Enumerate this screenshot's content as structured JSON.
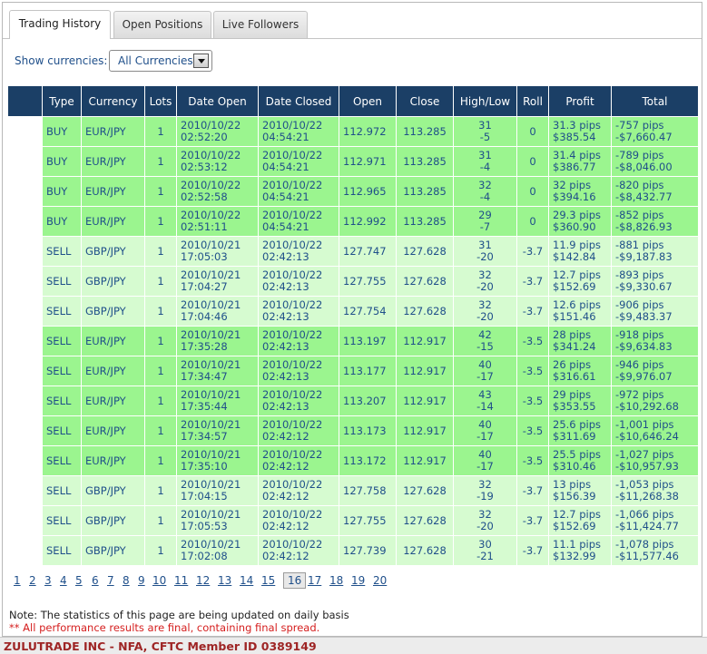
{
  "tabs": [
    {
      "label": "Trading History",
      "active": true
    },
    {
      "label": "Open Positions",
      "active": false
    },
    {
      "label": "Live Followers",
      "active": false
    }
  ],
  "filter": {
    "label": "Show currencies:",
    "selected": "All Currencies"
  },
  "columns": [
    "Type",
    "Currency",
    "Lots",
    "Date Open",
    "Date Closed",
    "Open",
    "Close",
    "High/Low",
    "Roll",
    "Profit",
    "Total"
  ],
  "rows": [
    {
      "type": "BUY",
      "currency": "EUR/JPY",
      "lots": "1",
      "date_open": [
        "2010/10/22",
        "02:52:20"
      ],
      "date_closed": [
        "2010/10/22",
        "04:54:21"
      ],
      "open": "112.972",
      "close": "113.285",
      "high_low": [
        "31",
        "-5"
      ],
      "roll": "0",
      "profit": [
        "31.3 pips",
        "$385.54"
      ],
      "total": [
        "-757 pips",
        "-$7,660.47"
      ],
      "shade": "buy"
    },
    {
      "type": "BUY",
      "currency": "EUR/JPY",
      "lots": "1",
      "date_open": [
        "2010/10/22",
        "02:53:12"
      ],
      "date_closed": [
        "2010/10/22",
        "04:54:21"
      ],
      "open": "112.971",
      "close": "113.285",
      "high_low": [
        "31",
        "-4"
      ],
      "roll": "0",
      "profit": [
        "31.4 pips",
        "$386.77"
      ],
      "total": [
        "-789 pips",
        "-$8,046.00"
      ],
      "shade": "buy"
    },
    {
      "type": "BUY",
      "currency": "EUR/JPY",
      "lots": "1",
      "date_open": [
        "2010/10/22",
        "02:52:58"
      ],
      "date_closed": [
        "2010/10/22",
        "04:54:21"
      ],
      "open": "112.965",
      "close": "113.285",
      "high_low": [
        "32",
        "-4"
      ],
      "roll": "0",
      "profit": [
        "32 pips",
        "$394.16"
      ],
      "total": [
        "-820 pips",
        "-$8,432.77"
      ],
      "shade": "buy"
    },
    {
      "type": "BUY",
      "currency": "EUR/JPY",
      "lots": "1",
      "date_open": [
        "2010/10/22",
        "02:51:11"
      ],
      "date_closed": [
        "2010/10/22",
        "04:54:21"
      ],
      "open": "112.992",
      "close": "113.285",
      "high_low": [
        "29",
        "-7"
      ],
      "roll": "0",
      "profit": [
        "29.3 pips",
        "$360.90"
      ],
      "total": [
        "-852 pips",
        "-$8,826.93"
      ],
      "shade": "buy"
    },
    {
      "type": "SELL",
      "currency": "GBP/JPY",
      "lots": "1",
      "date_open": [
        "2010/10/21",
        "17:05:03"
      ],
      "date_closed": [
        "2010/10/22",
        "02:42:13"
      ],
      "open": "127.747",
      "close": "127.628",
      "high_low": [
        "31",
        "-20"
      ],
      "roll": "-3.7",
      "profit": [
        "11.9 pips",
        "$142.84"
      ],
      "total": [
        "-881 pips",
        "-$9,187.83"
      ],
      "shade": "sell1"
    },
    {
      "type": "SELL",
      "currency": "GBP/JPY",
      "lots": "1",
      "date_open": [
        "2010/10/21",
        "17:04:27"
      ],
      "date_closed": [
        "2010/10/22",
        "02:42:13"
      ],
      "open": "127.755",
      "close": "127.628",
      "high_low": [
        "32",
        "-20"
      ],
      "roll": "-3.7",
      "profit": [
        "12.7 pips",
        "$152.69"
      ],
      "total": [
        "-893 pips",
        "-$9,330.67"
      ],
      "shade": "sell1"
    },
    {
      "type": "SELL",
      "currency": "GBP/JPY",
      "lots": "1",
      "date_open": [
        "2010/10/21",
        "17:04:46"
      ],
      "date_closed": [
        "2010/10/22",
        "02:42:13"
      ],
      "open": "127.754",
      "close": "127.628",
      "high_low": [
        "32",
        "-20"
      ],
      "roll": "-3.7",
      "profit": [
        "12.6 pips",
        "$151.46"
      ],
      "total": [
        "-906 pips",
        "-$9,483.37"
      ],
      "shade": "sell1"
    },
    {
      "type": "SELL",
      "currency": "EUR/JPY",
      "lots": "1",
      "date_open": [
        "2010/10/21",
        "17:35:28"
      ],
      "date_closed": [
        "2010/10/22",
        "02:42:13"
      ],
      "open": "113.197",
      "close": "112.917",
      "high_low": [
        "42",
        "-15"
      ],
      "roll": "-3.5",
      "profit": [
        "28 pips",
        "$341.24"
      ],
      "total": [
        "-918 pips",
        "-$9,634.83"
      ],
      "shade": "sell2"
    },
    {
      "type": "SELL",
      "currency": "EUR/JPY",
      "lots": "1",
      "date_open": [
        "2010/10/21",
        "17:34:47"
      ],
      "date_closed": [
        "2010/10/22",
        "02:42:13"
      ],
      "open": "113.177",
      "close": "112.917",
      "high_low": [
        "40",
        "-17"
      ],
      "roll": "-3.5",
      "profit": [
        "26 pips",
        "$316.61"
      ],
      "total": [
        "-946 pips",
        "-$9,976.07"
      ],
      "shade": "sell2"
    },
    {
      "type": "SELL",
      "currency": "EUR/JPY",
      "lots": "1",
      "date_open": [
        "2010/10/21",
        "17:35:44"
      ],
      "date_closed": [
        "2010/10/22",
        "02:42:13"
      ],
      "open": "113.207",
      "close": "112.917",
      "high_low": [
        "43",
        "-14"
      ],
      "roll": "-3.5",
      "profit": [
        "29 pips",
        "$353.55"
      ],
      "total": [
        "-972 pips",
        "-$10,292.68"
      ],
      "shade": "sell2"
    },
    {
      "type": "SELL",
      "currency": "EUR/JPY",
      "lots": "1",
      "date_open": [
        "2010/10/21",
        "17:34:57"
      ],
      "date_closed": [
        "2010/10/22",
        "02:42:12"
      ],
      "open": "113.173",
      "close": "112.917",
      "high_low": [
        "40",
        "-17"
      ],
      "roll": "-3.5",
      "profit": [
        "25.6 pips",
        "$311.69"
      ],
      "total": [
        "-1,001 pips",
        "-$10,646.24"
      ],
      "shade": "sell2"
    },
    {
      "type": "SELL",
      "currency": "EUR/JPY",
      "lots": "1",
      "date_open": [
        "2010/10/21",
        "17:35:10"
      ],
      "date_closed": [
        "2010/10/22",
        "02:42:12"
      ],
      "open": "113.172",
      "close": "112.917",
      "high_low": [
        "40",
        "-17"
      ],
      "roll": "-3.5",
      "profit": [
        "25.5 pips",
        "$310.46"
      ],
      "total": [
        "-1,027 pips",
        "-$10,957.93"
      ],
      "shade": "sell2"
    },
    {
      "type": "SELL",
      "currency": "GBP/JPY",
      "lots": "1",
      "date_open": [
        "2010/10/21",
        "17:04:15"
      ],
      "date_closed": [
        "2010/10/22",
        "02:42:12"
      ],
      "open": "127.758",
      "close": "127.628",
      "high_low": [
        "32",
        "-19"
      ],
      "roll": "-3.7",
      "profit": [
        "13 pips",
        "$156.39"
      ],
      "total": [
        "-1,053 pips",
        "-$11,268.38"
      ],
      "shade": "sell1"
    },
    {
      "type": "SELL",
      "currency": "GBP/JPY",
      "lots": "1",
      "date_open": [
        "2010/10/21",
        "17:05:53"
      ],
      "date_closed": [
        "2010/10/22",
        "02:42:12"
      ],
      "open": "127.755",
      "close": "127.628",
      "high_low": [
        "32",
        "-20"
      ],
      "roll": "-3.7",
      "profit": [
        "12.7 pips",
        "$152.69"
      ],
      "total": [
        "-1,066 pips",
        "-$11,424.77"
      ],
      "shade": "sell1"
    },
    {
      "type": "SELL",
      "currency": "GBP/JPY",
      "lots": "1",
      "date_open": [
        "2010/10/21",
        "17:02:08"
      ],
      "date_closed": [
        "2010/10/22",
        "02:42:12"
      ],
      "open": "127.739",
      "close": "127.628",
      "high_low": [
        "30",
        "-21"
      ],
      "roll": "-3.7",
      "profit": [
        "11.1 pips",
        "$132.99"
      ],
      "total": [
        "-1,078 pips",
        "-$11,577.46"
      ],
      "shade": "sell1"
    }
  ],
  "pagination": {
    "pages": [
      "1",
      "2",
      "3",
      "4",
      "5",
      "6",
      "7",
      "8",
      "9",
      "10",
      "11",
      "12",
      "13",
      "14",
      "15",
      "16",
      "17",
      "18",
      "19",
      "20"
    ],
    "current": "16"
  },
  "notes": {
    "update": "Note: The statistics of this page are being updated on daily basis",
    "final": "** All performance results are final, containing final spread."
  },
  "footer": "ZULUTRADE INC - NFA, CFTC Member ID 0389149",
  "colors": {
    "header_bg": "#1b3f66",
    "row_bright": "#9bf58f",
    "row_pale": "#d6fbd0",
    "link": "#1f4f8a",
    "footer_text": "#9e2525"
  }
}
